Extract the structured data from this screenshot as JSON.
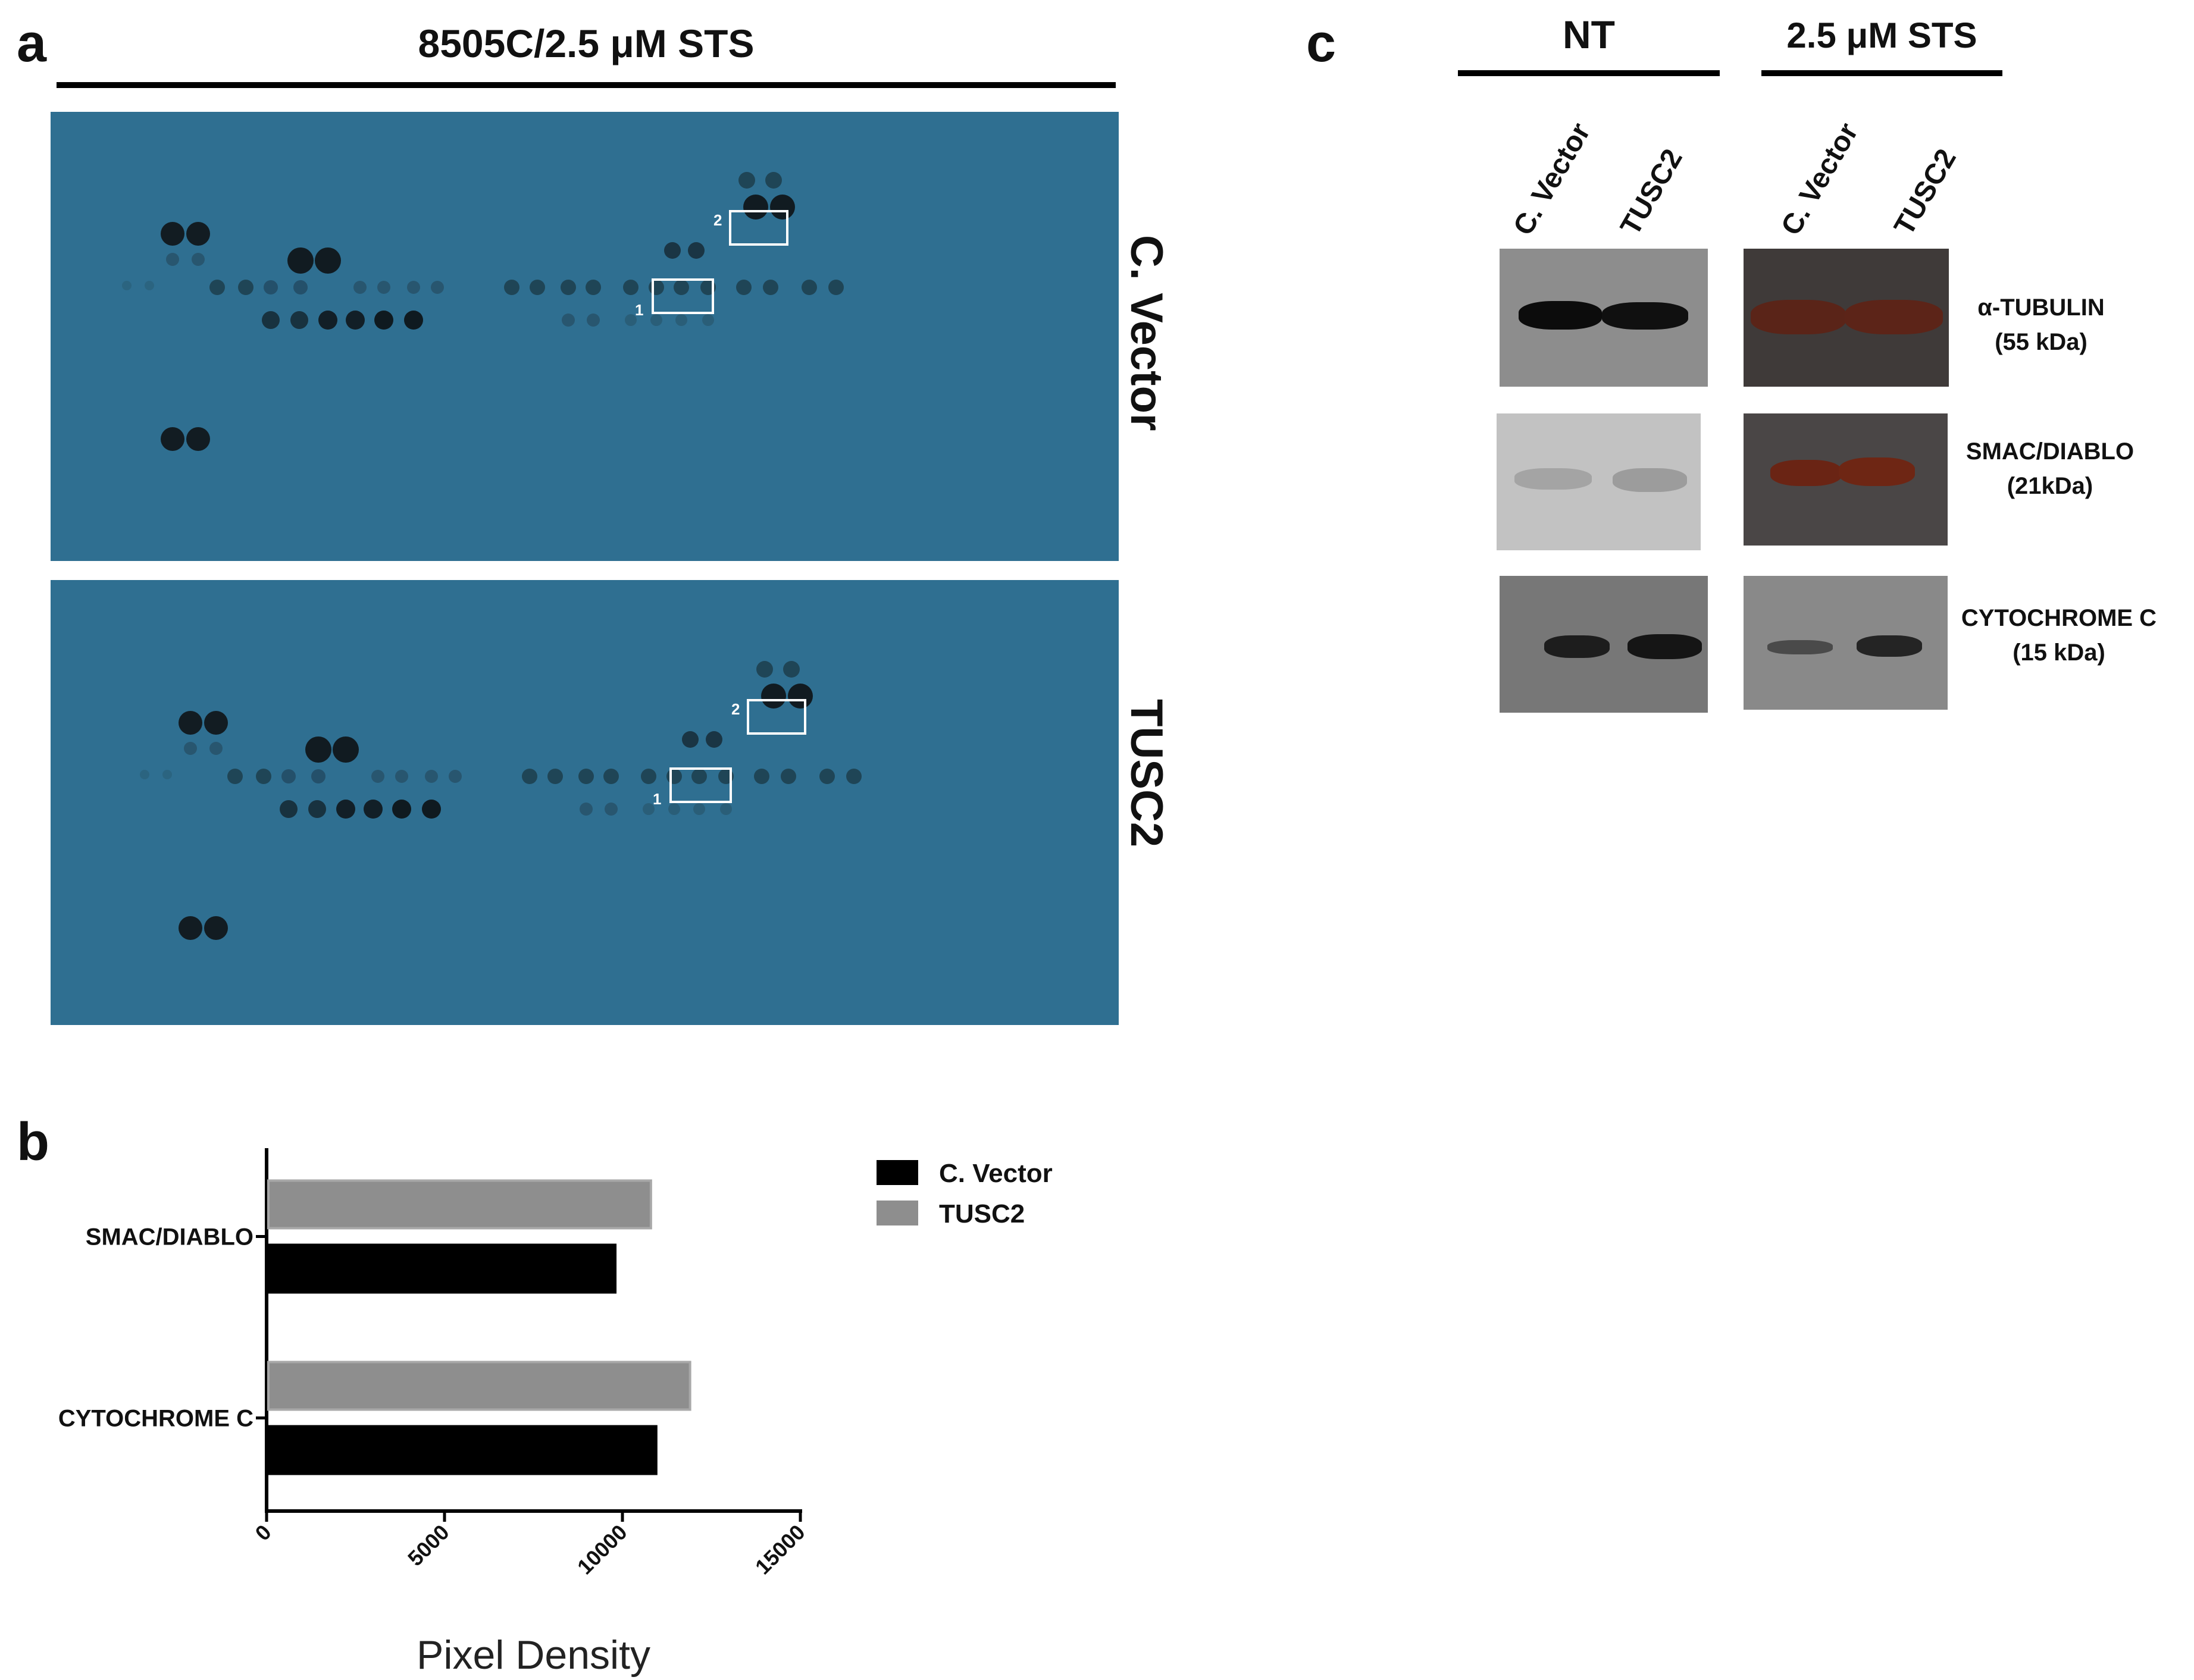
{
  "panel_a": {
    "letter": "a",
    "header": "8505C/2.5 μM STS",
    "rows": [
      {
        "label": "C. Vector",
        "roi1": "1",
        "roi2": "2"
      },
      {
        "label": "TUSC2",
        "roi1": "1",
        "roi2": "2"
      }
    ],
    "membrane_color": "#2f6f91"
  },
  "panel_b": {
    "letter": "b",
    "chart_data": {
      "type": "bar",
      "orientation": "horizontal",
      "title": "",
      "xlabel": "Pixel Density",
      "ylabel": "",
      "xlim": [
        0,
        15000
      ],
      "x_ticks": [
        "0",
        "5000",
        "10000",
        "15000"
      ],
      "categories": [
        "SMAC/DIABLO",
        "CYTOCHROME C"
      ],
      "series": [
        {
          "name": "C. Vector",
          "color": "#000000",
          "values": [
            9800,
            10950
          ]
        },
        {
          "name": "TUSC2",
          "color": "#8e8e8e",
          "values": [
            10800,
            11900
          ]
        }
      ],
      "legend_position": "top-right"
    }
  },
  "panel_c": {
    "letter": "c",
    "groups": [
      {
        "label": "NT",
        "lanes": [
          "C. Vector",
          "TUSC2"
        ]
      },
      {
        "label": "2.5 μM STS",
        "lanes": [
          "C. Vector",
          "TUSC2"
        ]
      }
    ],
    "blots": [
      {
        "name": "α-TUBULIN",
        "size": "(55 kDa)"
      },
      {
        "name": "SMAC/DIABLO",
        "size": "(21kDa)"
      },
      {
        "name": "CYTOCHROME C",
        "size": "(15 kDa)"
      }
    ]
  }
}
